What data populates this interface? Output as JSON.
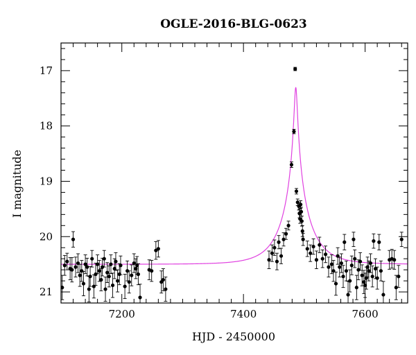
{
  "chart_data": {
    "type": "scatter",
    "title": "OGLE-2016-BLG-0623",
    "xlabel": "HJD - 2450000",
    "ylabel": "I magnitude",
    "xlim": [
      7100,
      7670
    ],
    "ylim": [
      21.2,
      16.5
    ],
    "y_inverted": true,
    "xticks": [
      7200,
      7400,
      7600
    ],
    "yticks": [
      17,
      18,
      19,
      20,
      21
    ],
    "grid": false,
    "marker_color": "#000000",
    "model_color": "#e040e0",
    "model": {
      "baseline_mag": 20.5,
      "t0": 7486,
      "peak_mag": 17.3
    },
    "points": [
      {
        "x": 7102,
        "y": 20.92,
        "e": 0.22
      },
      {
        "x": 7106,
        "y": 20.52,
        "e": 0.18
      },
      {
        "x": 7110,
        "y": 20.45,
        "e": 0.15
      },
      {
        "x": 7115,
        "y": 20.58,
        "e": 0.2
      },
      {
        "x": 7118,
        "y": 20.6,
        "e": 0.22
      },
      {
        "x": 7120,
        "y": 20.05,
        "e": 0.14
      },
      {
        "x": 7124,
        "y": 20.55,
        "e": 0.18
      },
      {
        "x": 7128,
        "y": 20.48,
        "e": 0.17
      },
      {
        "x": 7131,
        "y": 20.7,
        "e": 0.2
      },
      {
        "x": 7134,
        "y": 20.62,
        "e": 0.19
      },
      {
        "x": 7137,
        "y": 20.85,
        "e": 0.22
      },
      {
        "x": 7140,
        "y": 20.5,
        "e": 0.17
      },
      {
        "x": 7143,
        "y": 20.55,
        "e": 0.16
      },
      {
        "x": 7146,
        "y": 20.95,
        "e": 0.23
      },
      {
        "x": 7148,
        "y": 20.72,
        "e": 0.18
      },
      {
        "x": 7151,
        "y": 20.4,
        "e": 0.15
      },
      {
        "x": 7154,
        "y": 20.9,
        "e": 0.21
      },
      {
        "x": 7157,
        "y": 20.68,
        "e": 0.2
      },
      {
        "x": 7160,
        "y": 20.5,
        "e": 0.17
      },
      {
        "x": 7163,
        "y": 20.62,
        "e": 0.19
      },
      {
        "x": 7166,
        "y": 20.78,
        "e": 0.2
      },
      {
        "x": 7168,
        "y": 20.55,
        "e": 0.16
      },
      {
        "x": 7171,
        "y": 20.4,
        "e": 0.15
      },
      {
        "x": 7173,
        "y": 20.95,
        "e": 0.22
      },
      {
        "x": 7176,
        "y": 20.65,
        "e": 0.18
      },
      {
        "x": 7179,
        "y": 20.72,
        "e": 0.19
      },
      {
        "x": 7182,
        "y": 20.5,
        "e": 0.17
      },
      {
        "x": 7185,
        "y": 20.88,
        "e": 0.22
      },
      {
        "x": 7188,
        "y": 20.58,
        "e": 0.18
      },
      {
        "x": 7190,
        "y": 20.45,
        "e": 0.16
      },
      {
        "x": 7193,
        "y": 20.8,
        "e": 0.2
      },
      {
        "x": 7196,
        "y": 20.68,
        "e": 0.19
      },
      {
        "x": 7198,
        "y": 20.52,
        "e": 0.17
      },
      {
        "x": 7205,
        "y": 20.9,
        "e": 0.22
      },
      {
        "x": 7209,
        "y": 20.62,
        "e": 0.18
      },
      {
        "x": 7212,
        "y": 20.82,
        "e": 0.2
      },
      {
        "x": 7216,
        "y": 20.7,
        "e": 0.19
      },
      {
        "x": 7220,
        "y": 20.48,
        "e": 0.17
      },
      {
        "x": 7223,
        "y": 20.58,
        "e": 0.18
      },
      {
        "x": 7225,
        "y": 20.52,
        "e": 0.16
      },
      {
        "x": 7227,
        "y": 20.68,
        "e": 0.19
      },
      {
        "x": 7230,
        "y": 21.1,
        "e": 0.24
      },
      {
        "x": 7245,
        "y": 20.6,
        "e": 0.18
      },
      {
        "x": 7249,
        "y": 20.62,
        "e": 0.19
      },
      {
        "x": 7256,
        "y": 20.25,
        "e": 0.16
      },
      {
        "x": 7260,
        "y": 20.22,
        "e": 0.15
      },
      {
        "x": 7265,
        "y": 20.82,
        "e": 0.2
      },
      {
        "x": 7268,
        "y": 20.78,
        "e": 0.2
      },
      {
        "x": 7272,
        "y": 20.95,
        "e": 0.22
      },
      {
        "x": 7442,
        "y": 20.42,
        "e": 0.16
      },
      {
        "x": 7447,
        "y": 20.3,
        "e": 0.15
      },
      {
        "x": 7451,
        "y": 20.2,
        "e": 0.14
      },
      {
        "x": 7455,
        "y": 20.45,
        "e": 0.15
      },
      {
        "x": 7458,
        "y": 20.1,
        "e": 0.12
      },
      {
        "x": 7462,
        "y": 20.35,
        "e": 0.14
      },
      {
        "x": 7466,
        "y": 20.05,
        "e": 0.12
      },
      {
        "x": 7470,
        "y": 19.95,
        "e": 0.1
      },
      {
        "x": 7474,
        "y": 19.8,
        "e": 0.08
      },
      {
        "x": 7479,
        "y": 18.7,
        "e": 0.05
      },
      {
        "x": 7483,
        "y": 18.1,
        "e": 0.04
      },
      {
        "x": 7485,
        "y": 16.97,
        "e": 0.03
      },
      {
        "x": 7487,
        "y": 19.18,
        "e": 0.05
      },
      {
        "x": 7489,
        "y": 19.38,
        "e": 0.06
      },
      {
        "x": 7491,
        "y": 19.45,
        "e": 0.07
      },
      {
        "x": 7492,
        "y": 19.58,
        "e": 0.08
      },
      {
        "x": 7493,
        "y": 19.68,
        "e": 0.08
      },
      {
        "x": 7494,
        "y": 19.42,
        "e": 0.07
      },
      {
        "x": 7495,
        "y": 19.55,
        "e": 0.08
      },
      {
        "x": 7496,
        "y": 19.72,
        "e": 0.09
      },
      {
        "x": 7497,
        "y": 19.9,
        "e": 0.1
      },
      {
        "x": 7498,
        "y": 20.05,
        "e": 0.11
      },
      {
        "x": 7505,
        "y": 20.22,
        "e": 0.14
      },
      {
        "x": 7510,
        "y": 20.3,
        "e": 0.15
      },
      {
        "x": 7515,
        "y": 20.18,
        "e": 0.14
      },
      {
        "x": 7520,
        "y": 20.42,
        "e": 0.16
      },
      {
        "x": 7525,
        "y": 20.15,
        "e": 0.14
      },
      {
        "x": 7530,
        "y": 20.4,
        "e": 0.16
      },
      {
        "x": 7535,
        "y": 20.32,
        "e": 0.15
      },
      {
        "x": 7540,
        "y": 20.55,
        "e": 0.18
      },
      {
        "x": 7545,
        "y": 20.5,
        "e": 0.17
      },
      {
        "x": 7548,
        "y": 20.62,
        "e": 0.19
      },
      {
        "x": 7552,
        "y": 20.85,
        "e": 0.21
      },
      {
        "x": 7555,
        "y": 20.35,
        "e": 0.15
      },
      {
        "x": 7558,
        "y": 20.55,
        "e": 0.18
      },
      {
        "x": 7561,
        "y": 20.48,
        "e": 0.17
      },
      {
        "x": 7564,
        "y": 20.72,
        "e": 0.2
      },
      {
        "x": 7566,
        "y": 20.1,
        "e": 0.14
      },
      {
        "x": 7569,
        "y": 20.62,
        "e": 0.18
      },
      {
        "x": 7572,
        "y": 21.05,
        "e": 0.24
      },
      {
        "x": 7575,
        "y": 20.8,
        "e": 0.2
      },
      {
        "x": 7578,
        "y": 20.52,
        "e": 0.17
      },
      {
        "x": 7581,
        "y": 20.05,
        "e": 0.13
      },
      {
        "x": 7583,
        "y": 20.4,
        "e": 0.16
      },
      {
        "x": 7586,
        "y": 20.92,
        "e": 0.22
      },
      {
        "x": 7589,
        "y": 20.6,
        "e": 0.18
      },
      {
        "x": 7592,
        "y": 20.45,
        "e": 0.16
      },
      {
        "x": 7595,
        "y": 20.7,
        "e": 0.19
      },
      {
        "x": 7598,
        "y": 20.82,
        "e": 0.21
      },
      {
        "x": 7600,
        "y": 20.88,
        "e": 0.22
      },
      {
        "x": 7602,
        "y": 20.75,
        "e": 0.2
      },
      {
        "x": 7604,
        "y": 20.55,
        "e": 0.18
      },
      {
        "x": 7606,
        "y": 20.62,
        "e": 0.18
      },
      {
        "x": 7609,
        "y": 20.48,
        "e": 0.17
      },
      {
        "x": 7612,
        "y": 20.72,
        "e": 0.19
      },
      {
        "x": 7614,
        "y": 20.08,
        "e": 0.13
      },
      {
        "x": 7617,
        "y": 20.58,
        "e": 0.18
      },
      {
        "x": 7620,
        "y": 20.75,
        "e": 0.2
      },
      {
        "x": 7623,
        "y": 20.1,
        "e": 0.14
      },
      {
        "x": 7626,
        "y": 20.62,
        "e": 0.18
      },
      {
        "x": 7630,
        "y": 21.05,
        "e": 0.24
      },
      {
        "x": 7640,
        "y": 20.42,
        "e": 0.17
      },
      {
        "x": 7644,
        "y": 20.4,
        "e": 0.17
      },
      {
        "x": 7648,
        "y": 20.42,
        "e": 0.17
      },
      {
        "x": 7651,
        "y": 20.92,
        "e": 0.22
      },
      {
        "x": 7655,
        "y": 20.72,
        "e": 0.2
      },
      {
        "x": 7660,
        "y": 20.05,
        "e": 0.13
      }
    ]
  }
}
